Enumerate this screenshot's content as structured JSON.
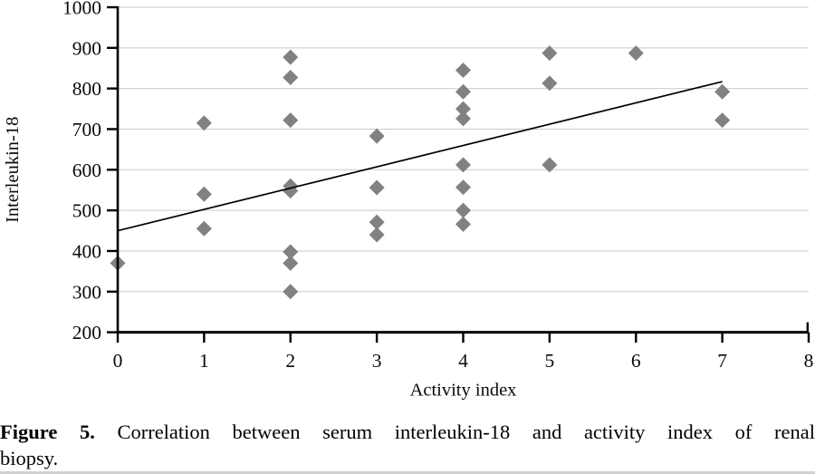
{
  "figure": {
    "caption": {
      "label": "Figure 5.",
      "line1": "Correlation between serum interleukin-18 and activity index of renal",
      "line2": "biopsy."
    }
  },
  "chart_data": {
    "type": "scatter",
    "title": "",
    "xlabel": "Activity index",
    "ylabel": "Interleukin-18",
    "xlim": [
      0,
      8
    ],
    "ylim": [
      200,
      1000
    ],
    "x_ticks": [
      0,
      1,
      2,
      3,
      4,
      5,
      6,
      7,
      8
    ],
    "y_ticks": [
      200,
      300,
      400,
      500,
      600,
      700,
      800,
      900,
      1000
    ],
    "grid": "horizontal-only",
    "legend": "none",
    "points_format": "[activity_index, interleukin_18]",
    "points": [
      [
        0,
        370
      ],
      [
        1,
        715
      ],
      [
        1,
        540
      ],
      [
        1,
        455
      ],
      [
        2,
        877
      ],
      [
        2,
        827
      ],
      [
        2,
        722
      ],
      [
        2,
        560
      ],
      [
        2,
        548
      ],
      [
        2,
        398
      ],
      [
        2,
        370
      ],
      [
        2,
        300
      ],
      [
        3,
        683
      ],
      [
        3,
        556
      ],
      [
        3,
        471
      ],
      [
        3,
        440
      ],
      [
        4,
        845
      ],
      [
        4,
        792
      ],
      [
        4,
        750
      ],
      [
        4,
        726
      ],
      [
        4,
        612
      ],
      [
        4,
        557
      ],
      [
        4,
        500
      ],
      [
        4,
        466
      ],
      [
        5,
        887
      ],
      [
        5,
        813
      ],
      [
        5,
        612
      ],
      [
        6,
        887
      ],
      [
        7,
        792
      ],
      [
        7,
        722
      ]
    ],
    "trendline": {
      "x1": 0,
      "y1": 450,
      "x2": 7,
      "y2": 817
    },
    "marker": {
      "shape": "diamond",
      "color": "#7f8184",
      "size": 17
    },
    "colors": {
      "axis": "#000000",
      "gridline": "#c9c9c9",
      "trendline": "#000000",
      "marker": "#7f8184",
      "text": "#0a0a0a"
    }
  }
}
